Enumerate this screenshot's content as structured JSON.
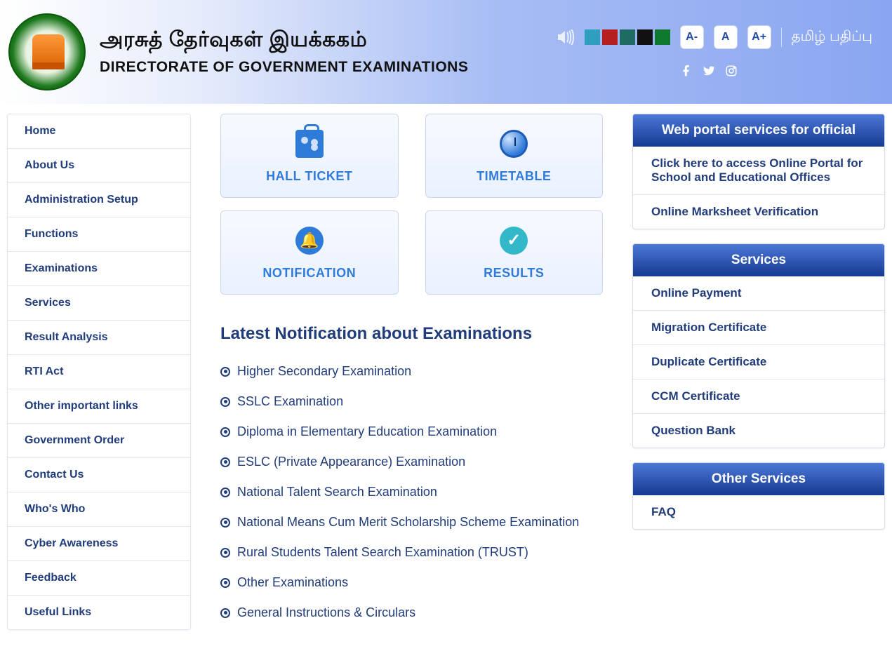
{
  "header": {
    "title_tamil": "அரசுத் தேர்வுகள் இயக்ககம்",
    "title_en": "DIRECTORATE OF GOVERNMENT EXAMINATIONS",
    "font_minus": "A-",
    "font_normal": "A",
    "font_plus": "A+",
    "lang_switch": "தமிழ் பதிப்பு",
    "swatch_colors": [
      "#2e9fbf",
      "#b61f1f",
      "#1d6b63",
      "#111111",
      "#0f7a2e"
    ]
  },
  "sidebar": {
    "items": [
      "Home",
      "About Us",
      "Administration Setup",
      "Functions",
      "Examinations",
      "Services",
      "Result Analysis",
      "RTI Act",
      "Other important links",
      "Government Order",
      "Contact Us",
      "Who's Who",
      "Cyber Awareness",
      "Feedback",
      "Useful Links"
    ]
  },
  "cards": [
    {
      "label": "HALL TICKET",
      "icon": "badge"
    },
    {
      "label": "TIMETABLE",
      "icon": "clock"
    },
    {
      "label": "NOTIFICATION",
      "icon": "bell"
    },
    {
      "label": "RESULTS",
      "icon": "check"
    }
  ],
  "notifications": {
    "heading": "Latest Notification about Examinations",
    "items": [
      "Higher Secondary Examination",
      "SSLC Examination",
      "Diploma in Elementary Education Examination",
      "ESLC (Private Appearance) Examination",
      "National Talent Search Examination",
      "National Means Cum Merit Scholarship Scheme Examination",
      "Rural Students Talent Search Examination (TRUST)",
      "Other Examinations",
      "General Instructions & Circulars"
    ]
  },
  "right_panels": [
    {
      "title": "Web portal services for official",
      "items": [
        "Click here to access Online Portal for School and Educational Offices",
        "Online Marksheet Verification"
      ]
    },
    {
      "title": "Services",
      "items": [
        "Online Payment",
        "Migration Certificate",
        "Duplicate Certificate",
        "CCM Certificate",
        "Question Bank"
      ]
    },
    {
      "title": "Other Services",
      "items": [
        "FAQ"
      ]
    }
  ]
}
